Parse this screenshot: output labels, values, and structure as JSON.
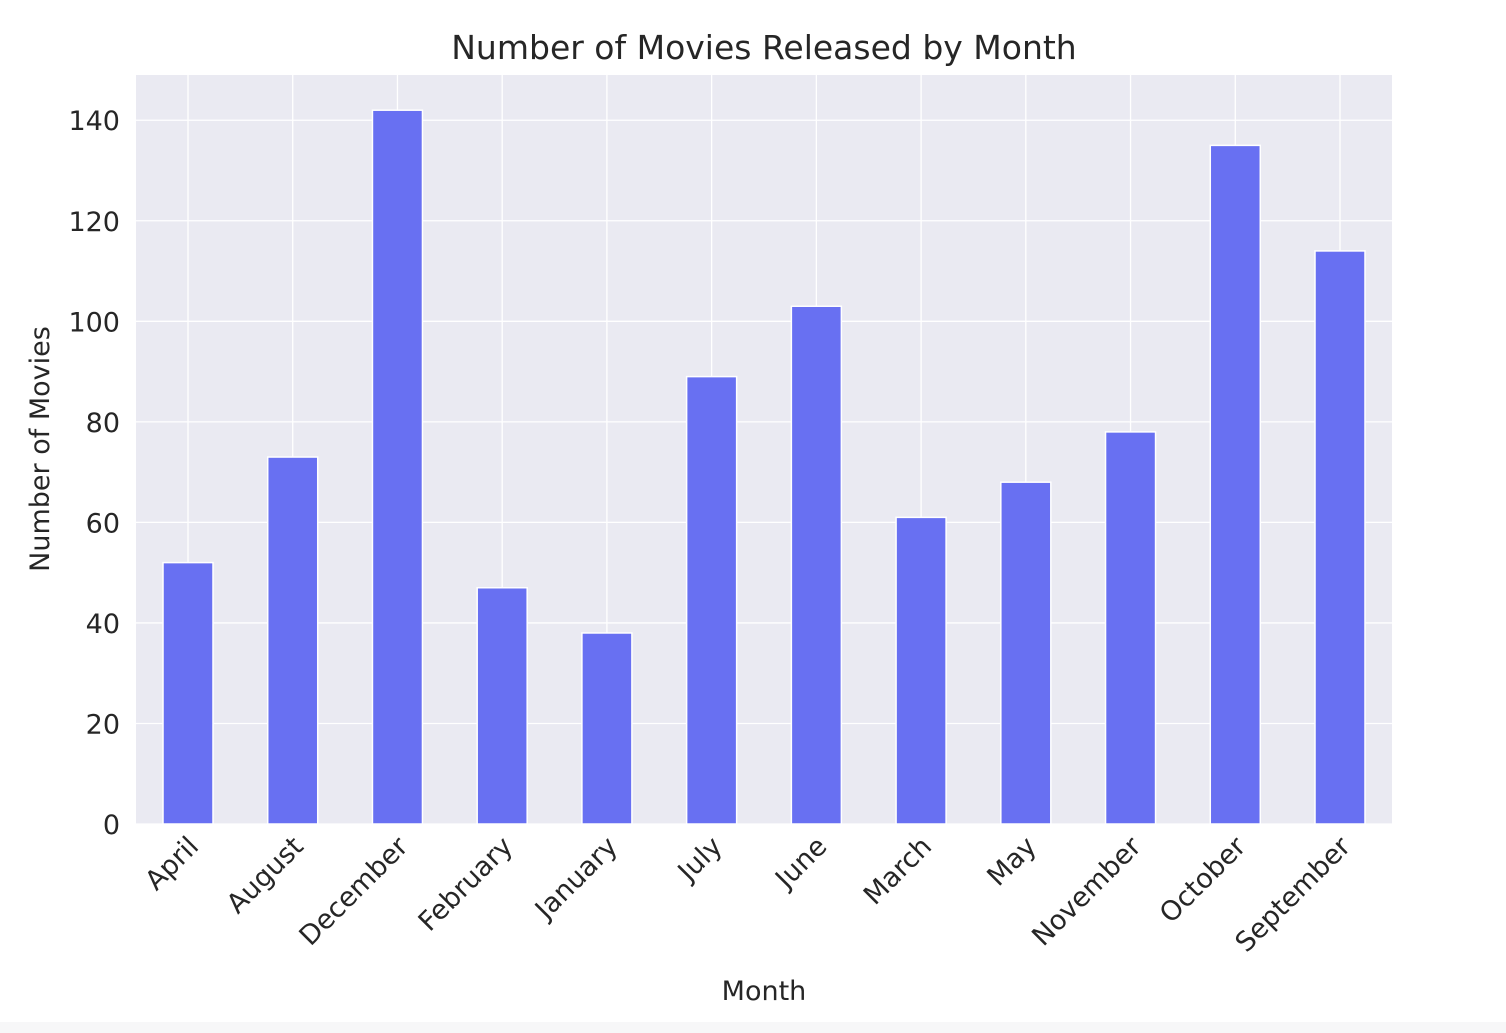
{
  "chart_data": {
    "type": "bar",
    "title": "Number of Movies Released by Month",
    "xlabel": "Month",
    "ylabel": "Number of Movies",
    "categories": [
      "April",
      "August",
      "December",
      "February",
      "January",
      "July",
      "June",
      "March",
      "May",
      "November",
      "October",
      "September"
    ],
    "values": [
      52,
      73,
      142,
      47,
      38,
      89,
      103,
      61,
      68,
      78,
      135,
      114
    ],
    "ylim": [
      0,
      149
    ],
    "yticks": [
      0,
      20,
      40,
      60,
      80,
      100,
      120,
      140
    ],
    "grid": true,
    "legend": "none",
    "colors": {
      "bar": "#6870f2",
      "plot_bg": "#eaeaf2",
      "grid": "#ffffff"
    }
  }
}
